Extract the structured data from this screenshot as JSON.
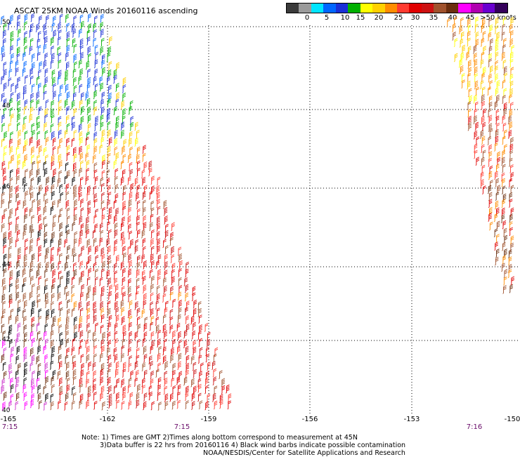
{
  "title": "ASCAT 25KM NOAA Winds 20160116 ascending",
  "colorbar": {
    "colors": [
      "#3a3a3a",
      "#9a9a9a",
      "#00e5ff",
      "#0066ff",
      "#1a2fd6",
      "#00b000",
      "#ffff00",
      "#ffd000",
      "#ff8c00",
      "#ff3b30",
      "#e00000",
      "#cc1111",
      "#a0522d",
      "#6b2e0e",
      "#ff00ff",
      "#b000b0",
      "#6a00d0",
      "#34005a"
    ],
    "ticks": [
      "0",
      "5",
      "10",
      "15",
      "20",
      "25",
      "30",
      "35",
      "40",
      "45",
      ">50 knots"
    ]
  },
  "longitude_labels": [
    "-165",
    "-162",
    "-159",
    "-156",
    "-153",
    "-150"
  ],
  "latitude_labels": [
    "50",
    "48",
    "46",
    "44",
    "42",
    "40"
  ],
  "time_labels": [
    "7:15",
    "7:15",
    "7:16"
  ],
  "notes": {
    "line1": "Note: 1) Times are GMT 2)Times along bottom correspond to measurement at 45N",
    "line2": "3)Data buffer is 22 hrs from 20160116 4) Black wind barbs indicate possible contamination",
    "line3": "NOAA/NESDIS/Center for Satellite Applications and Research"
  }
}
